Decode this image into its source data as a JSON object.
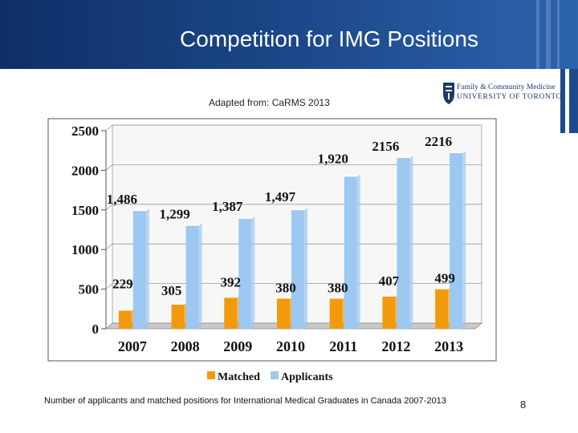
{
  "slide": {
    "title": "Competition for IMG Positions",
    "caption": "Adapted from:  CaRMS 2013",
    "footnote": "Number of applicants and matched positions for International Medical Graduates in Canada 2007-2013",
    "page_number": "8"
  },
  "logo": {
    "line1": "Family & Community Medicine",
    "line2": "UNIVERSITY OF TORONTO"
  },
  "colors": {
    "matched": "#f29a0c",
    "applicants": "#9cc8f2",
    "header": "#1d4a8c"
  },
  "chart_data": {
    "type": "bar",
    "categories": [
      "2007",
      "2008",
      "2009",
      "2010",
      "2011",
      "2012",
      "2013"
    ],
    "series": [
      {
        "name": "Matched",
        "values": [
          229,
          305,
          392,
          380,
          380,
          407,
          499
        ],
        "labels": [
          "229",
          "305",
          "392",
          "380",
          "380",
          "407",
          "499"
        ]
      },
      {
        "name": "Applicants",
        "values": [
          1486,
          1299,
          1387,
          1497,
          1920,
          2156,
          2216
        ],
        "labels": [
          "1,486",
          "1,299",
          "1,387",
          "1,497",
          "1,920",
          "2156",
          "2216"
        ]
      }
    ],
    "yticks": [
      "0",
      "500",
      "1000",
      "1500",
      "2000",
      "2500"
    ],
    "ylim": [
      0,
      2500
    ],
    "title": "",
    "xlabel": "",
    "ylabel": "",
    "legend": "bottom"
  }
}
